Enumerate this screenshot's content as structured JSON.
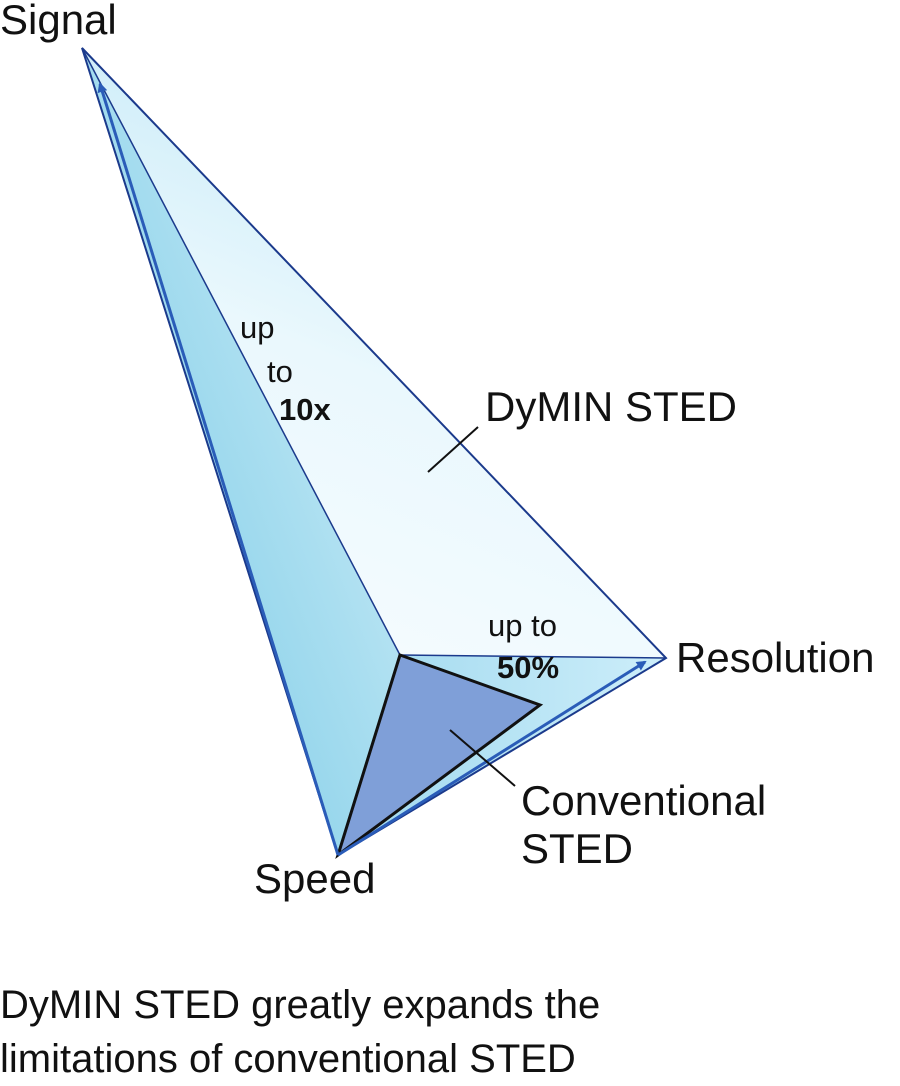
{
  "diagram": {
    "axes": {
      "signal": "Signal",
      "resolution": "Resolution",
      "speed": "Speed"
    },
    "annotations": {
      "signal_gain": {
        "line1": "up",
        "line2": "to",
        "value": "10x"
      },
      "resolution_gain": {
        "line1": "up to",
        "value": "50%"
      }
    },
    "regions": {
      "dymin": "DyMIN STED",
      "conventional_line1": "Conventional",
      "conventional_line2": "STED"
    },
    "colors": {
      "outline": "#1b3a8c",
      "arrow": "#2a5cb8",
      "face_left": "#7fcde6",
      "face_right_light": "#f4fbff",
      "conventional_fill": "#7f9fd8"
    }
  },
  "caption": {
    "line1": "DyMIN STED greatly expands the",
    "line2": "limitations of conventional STED"
  }
}
